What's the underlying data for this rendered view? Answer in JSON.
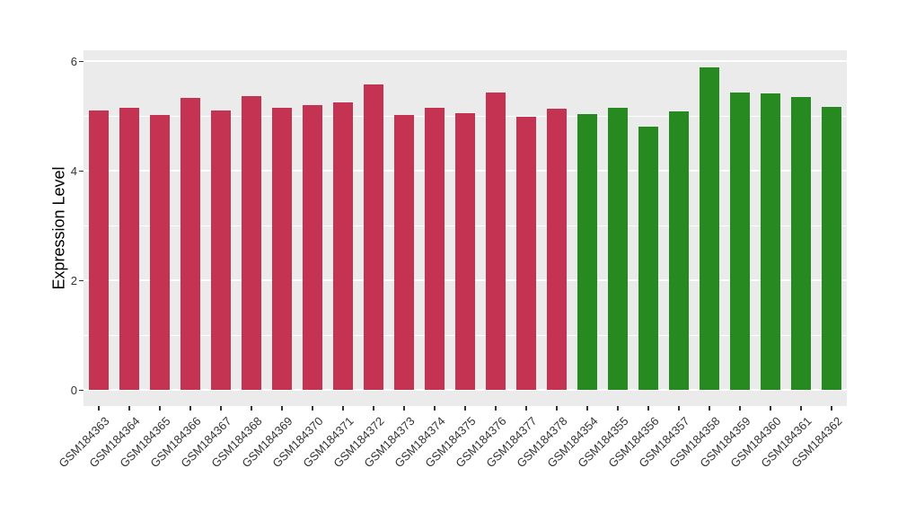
{
  "chart_data": {
    "type": "bar",
    "title": "",
    "xlabel": "",
    "ylabel": "Expression Level",
    "ylim": [
      0,
      6.2
    ],
    "yticks": [
      0,
      2,
      4,
      6
    ],
    "ytick_labels": [
      "0",
      "2",
      "4",
      "6"
    ],
    "minor_ticks": [
      1,
      3,
      5
    ],
    "grid": "on",
    "legend": "none",
    "panel_bg_color": "#EBEBEB",
    "grid_color": "#FFFFFF",
    "axis_text_color": "#333333",
    "group_colors": {
      "red": "#C43351",
      "green": "#278A21"
    },
    "bars": [
      {
        "label": "GSM184363",
        "value": 5.1,
        "group": "red"
      },
      {
        "label": "GSM184364",
        "value": 5.16,
        "group": "red"
      },
      {
        "label": "GSM184365",
        "value": 5.02,
        "group": "red"
      },
      {
        "label": "GSM184366",
        "value": 5.34,
        "group": "red"
      },
      {
        "label": "GSM184367",
        "value": 5.11,
        "group": "red"
      },
      {
        "label": "GSM184368",
        "value": 5.37,
        "group": "red"
      },
      {
        "label": "GSM184369",
        "value": 5.16,
        "group": "red"
      },
      {
        "label": "GSM184370",
        "value": 5.2,
        "group": "red"
      },
      {
        "label": "GSM184371",
        "value": 5.25,
        "group": "red"
      },
      {
        "label": "GSM184372",
        "value": 5.58,
        "group": "red"
      },
      {
        "label": "GSM184373",
        "value": 5.02,
        "group": "red"
      },
      {
        "label": "GSM184374",
        "value": 5.15,
        "group": "red"
      },
      {
        "label": "GSM184375",
        "value": 5.06,
        "group": "red"
      },
      {
        "label": "GSM184376",
        "value": 5.43,
        "group": "red"
      },
      {
        "label": "GSM184377",
        "value": 4.99,
        "group": "red"
      },
      {
        "label": "GSM184378",
        "value": 5.14,
        "group": "red"
      },
      {
        "label": "GSM184354",
        "value": 5.03,
        "group": "green"
      },
      {
        "label": "GSM184355",
        "value": 5.15,
        "group": "green"
      },
      {
        "label": "GSM184356",
        "value": 4.81,
        "group": "green"
      },
      {
        "label": "GSM184357",
        "value": 5.09,
        "group": "green"
      },
      {
        "label": "GSM184358",
        "value": 5.89,
        "group": "green"
      },
      {
        "label": "GSM184359",
        "value": 5.43,
        "group": "green"
      },
      {
        "label": "GSM184360",
        "value": 5.41,
        "group": "green"
      },
      {
        "label": "GSM184361",
        "value": 5.35,
        "group": "green"
      },
      {
        "label": "GSM184362",
        "value": 5.17,
        "group": "green"
      }
    ]
  }
}
